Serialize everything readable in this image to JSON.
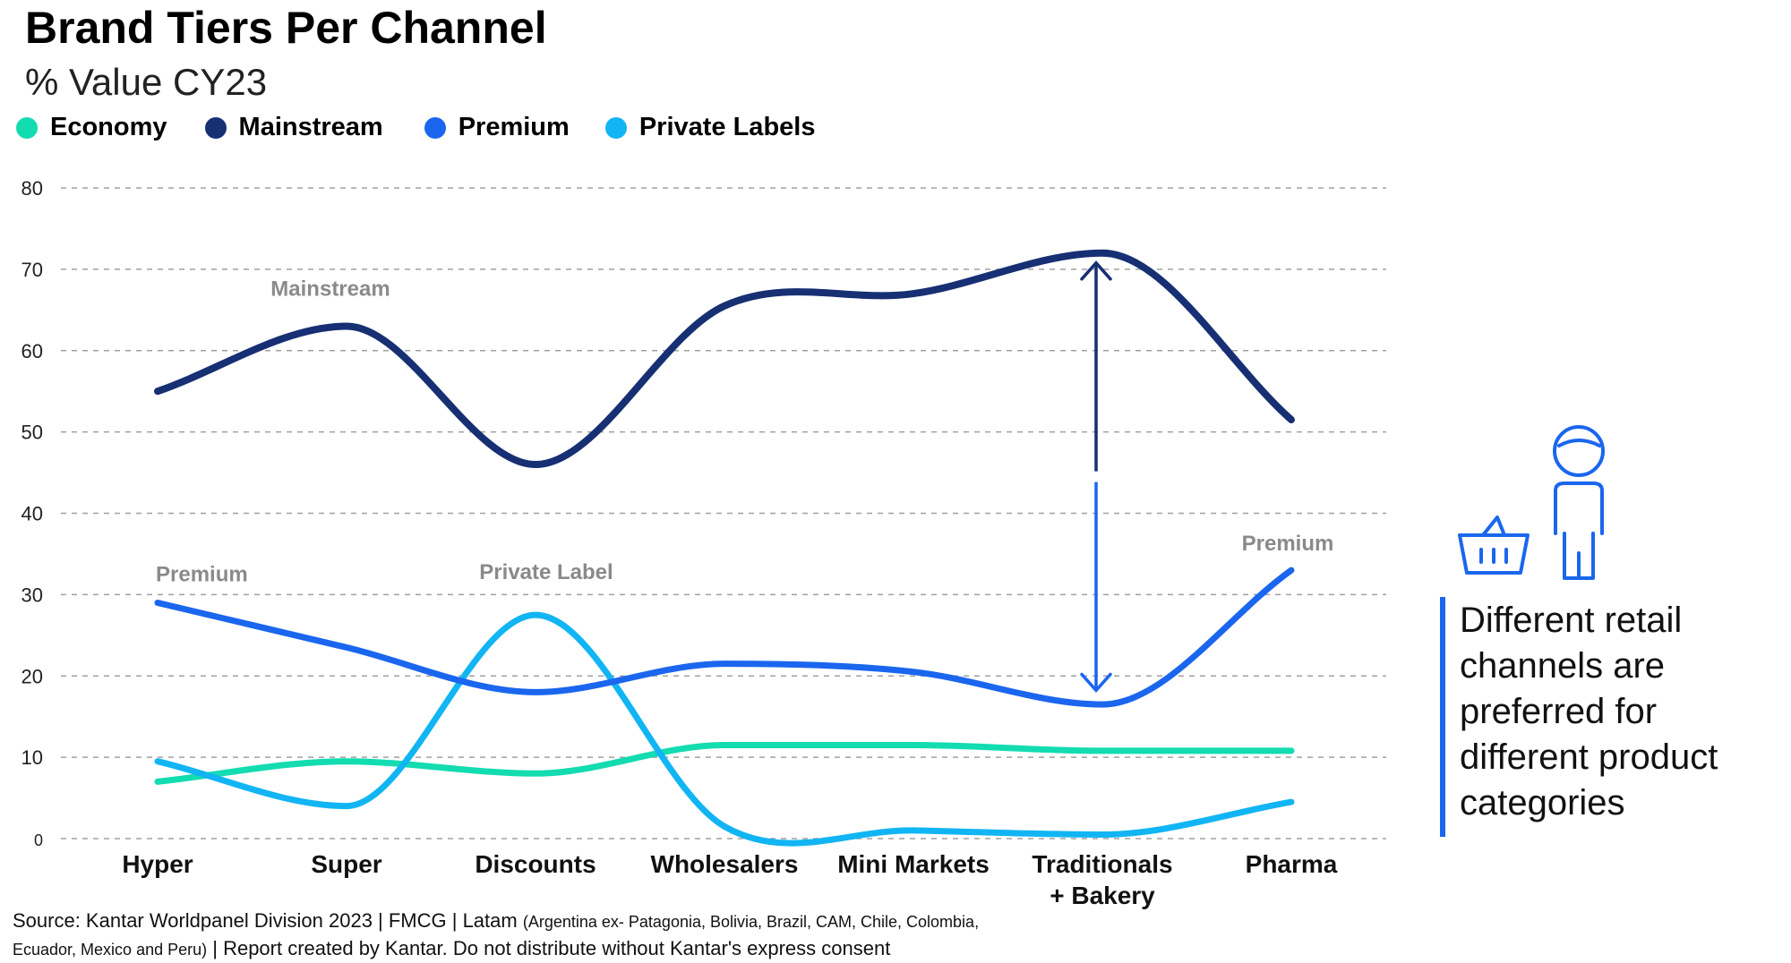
{
  "chart_data": {
    "type": "line",
    "title": "Brand Tiers Per Channel",
    "subtitle": "% Value CY23",
    "categories": [
      "Hyper",
      "Super",
      "Discounts",
      "Wholesalers",
      "Mini Markets",
      "Traditionals\n+ Bakery",
      "Pharma"
    ],
    "category_lines": [
      [
        "Hyper"
      ],
      [
        "Super"
      ],
      [
        "Discounts"
      ],
      [
        "Wholesalers"
      ],
      [
        "Mini Markets"
      ],
      [
        "Traditionals",
        "+ Bakery"
      ],
      [
        "Pharma"
      ]
    ],
    "ylim": [
      0,
      80
    ],
    "yticks": [
      0,
      10,
      20,
      30,
      40,
      50,
      60,
      70,
      80
    ],
    "grid": true,
    "legend_position": "top-left",
    "series": [
      {
        "name": "Economy",
        "color": "#12dcb0",
        "values": [
          7,
          9.5,
          8,
          11.5,
          11.5,
          10.8,
          10.8
        ]
      },
      {
        "name": "Mainstream",
        "color": "#172f73",
        "values": [
          55,
          63,
          46,
          65.5,
          67,
          72,
          51.5
        ]
      },
      {
        "name": "Premium",
        "color": "#1a66ee",
        "values": [
          29,
          23.5,
          18,
          21.5,
          20.5,
          16.5,
          33
        ]
      },
      {
        "name": "Private Labels",
        "color": "#12b5f3",
        "values": [
          9.5,
          4,
          27.5,
          1.5,
          1,
          0.5,
          4.5
        ]
      }
    ],
    "annotations": [
      {
        "text": "Mainstream",
        "category_index": 1,
        "y": 63,
        "color": "#8a8a8a"
      },
      {
        "text": "Premium",
        "category_index": 0,
        "y": 29,
        "color": "#8a8a8a"
      },
      {
        "text": "Private Label",
        "category_index": 2,
        "y": 27.5,
        "color": "#8a8a8a"
      },
      {
        "text": "Premium",
        "category_index": 6,
        "y": 33,
        "color": "#8a8a8a"
      }
    ],
    "gap_arrow": {
      "category_index": 5,
      "from": 71,
      "to": 18,
      "colors": [
        "#172f73",
        "#1a66ee"
      ]
    }
  },
  "note": {
    "lines": [
      "Different retail",
      "channels are",
      "preferred for",
      "different product",
      "categories"
    ]
  },
  "source": {
    "line1_main": "Source: Kantar Worldpanel Division 2023 | FMCG | Latam ",
    "line1_small": "(Argentina ex- Patagonia, Bolivia, Brazil, CAM, Chile, Colombia,",
    "line2_small": "Ecuador, Mexico and Peru)",
    "line2_main": " | Report created by Kantar. Do not distribute without Kantar's express consent"
  },
  "icons": [
    "shopping-basket-icon",
    "shopper-person-icon"
  ]
}
